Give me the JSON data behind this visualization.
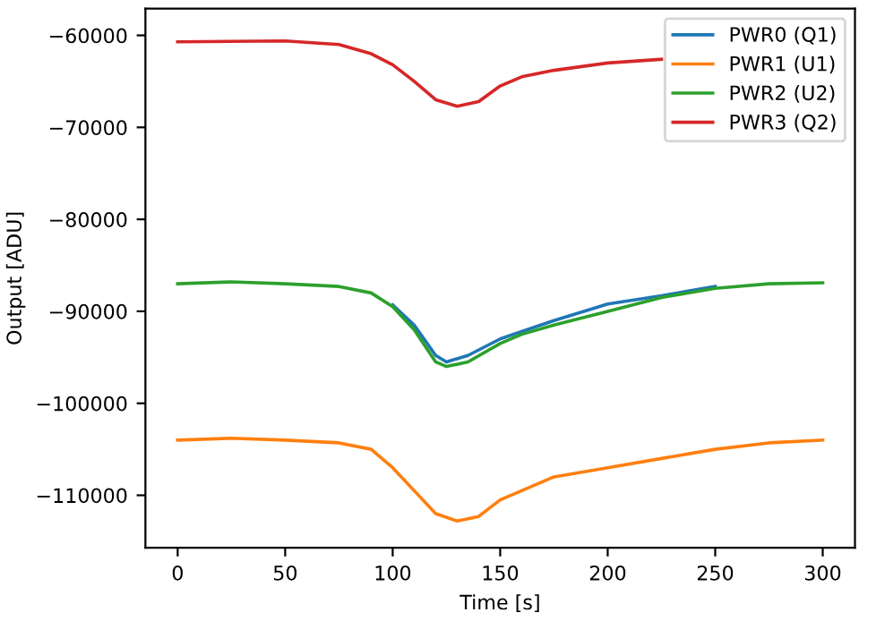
{
  "chart_data": {
    "type": "line",
    "xlabel": "Time [s]",
    "ylabel": "Output [ADU]",
    "xlim": [
      -15,
      315
    ],
    "ylim": [
      -115700,
      -57100
    ],
    "xticks": [
      0,
      50,
      100,
      150,
      200,
      250,
      300
    ],
    "yticks": [
      {
        "value": -110000,
        "label": "−110000"
      },
      {
        "value": -100000,
        "label": "−100000"
      },
      {
        "value": -90000,
        "label": "−90000"
      },
      {
        "value": -80000,
        "label": "−80000"
      },
      {
        "value": -70000,
        "label": "−70000"
      },
      {
        "value": -60000,
        "label": "−60000"
      }
    ],
    "grid": false,
    "legend": "top right",
    "line_style": "solid",
    "marker": "none",
    "series": [
      {
        "name": "PWR0 (Q1)",
        "color": "#1f77b4",
        "x": [
          100,
          110,
          120,
          125,
          135,
          150,
          160,
          175,
          200,
          225,
          250
        ],
        "values": [
          -89300,
          -91500,
          -94800,
          -95500,
          -94800,
          -93000,
          -92200,
          -91000,
          -89200,
          -88300,
          -87300
        ]
      },
      {
        "name": "PWR1 (U1)",
        "color": "#ff7f0e",
        "x": [
          0,
          25,
          50,
          75,
          90,
          100,
          110,
          120,
          130,
          140,
          150,
          160,
          175,
          200,
          225,
          250,
          275,
          300
        ],
        "values": [
          -104000,
          -103800,
          -104000,
          -104300,
          -105000,
          -107000,
          -109500,
          -112000,
          -112800,
          -112300,
          -110500,
          -109500,
          -108000,
          -107000,
          -106000,
          -105000,
          -104300,
          -104000
        ]
      },
      {
        "name": "PWR2 (U2)",
        "color": "#2ca02c",
        "x": [
          0,
          25,
          50,
          75,
          90,
          100,
          110,
          120,
          125,
          135,
          150,
          160,
          175,
          200,
          225,
          250,
          275,
          300
        ],
        "values": [
          -87000,
          -86800,
          -87000,
          -87300,
          -88000,
          -89500,
          -92000,
          -95500,
          -96000,
          -95500,
          -93500,
          -92500,
          -91500,
          -90000,
          -88500,
          -87500,
          -87000,
          -86900
        ]
      },
      {
        "name": "PWR3 (Q2)",
        "color": "#d62728",
        "x": [
          0,
          50,
          75,
          90,
          100,
          110,
          120,
          130,
          140,
          150,
          160,
          175,
          200,
          225
        ],
        "values": [
          -60700,
          -60600,
          -61000,
          -62000,
          -63200,
          -65000,
          -67000,
          -67700,
          -67200,
          -65500,
          -64500,
          -63800,
          -63000,
          -62600
        ]
      }
    ]
  }
}
